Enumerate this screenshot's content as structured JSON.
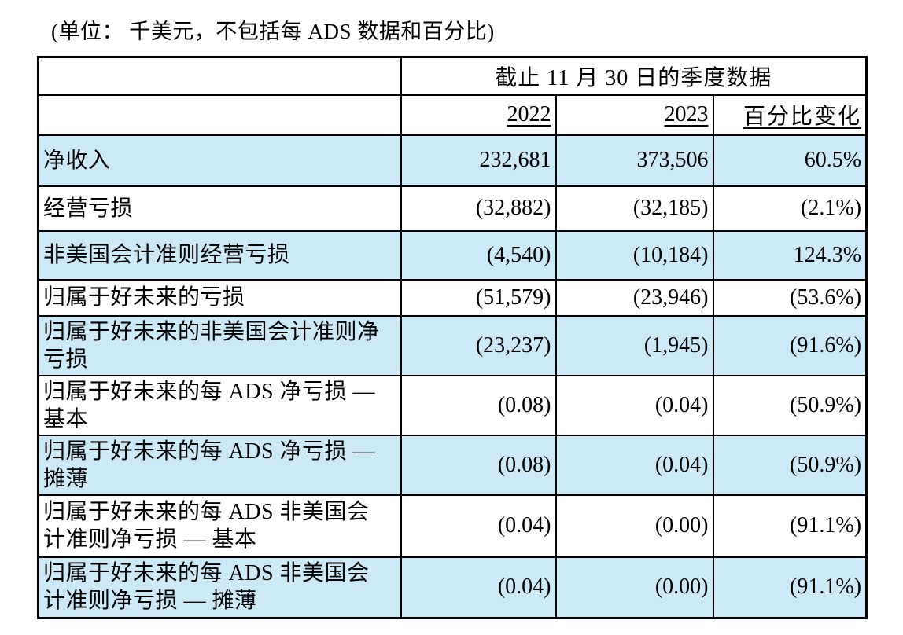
{
  "page": {
    "units_note": "(单位： 千美元，不包括每 ADS 数据和百分比)"
  },
  "table": {
    "period_title": "截止 11 月 30 日的季度数据",
    "columns": [
      "2022",
      "2023",
      "百分比变化"
    ],
    "rows": [
      {
        "label": "净收入",
        "y2022": "232,681",
        "y2023": "373,506",
        "change": "60.5%"
      },
      {
        "label": "经营亏损",
        "y2022": "(32,882)",
        "y2023": "(32,185)",
        "change": "(2.1%)"
      },
      {
        "label": "非美国会计准则经营亏损",
        "y2022": "(4,540)",
        "y2023": "(10,184)",
        "change": "124.3%"
      },
      {
        "label": "归属于好未来的亏损",
        "y2022": "(51,579)",
        "y2023": "(23,946)",
        "change": "(53.6%)"
      },
      {
        "label": "归属于好未来的非美国会计准则净亏损",
        "y2022": "(23,237)",
        "y2023": "(1,945)",
        "change": "(91.6%)"
      },
      {
        "label": "归属于好未来的每 ADS 净亏损 — 基本",
        "y2022": "(0.08)",
        "y2023": "(0.04)",
        "change": "(50.9%)"
      },
      {
        "label": "归属于好未来的每 ADS 净亏损 — 摊薄",
        "y2022": "(0.08)",
        "y2023": "(0.04)",
        "change": "(50.9%)"
      },
      {
        "label": "归属于好未来的每 ADS 非美国会计准则净亏损 — 基本",
        "y2022": "(0.04)",
        "y2023": "(0.00)",
        "change": "(91.1%)"
      },
      {
        "label": "归属于好未来的每 ADS 非美国会计准则净亏损 — 摊薄",
        "y2022": "(0.04)",
        "y2023": "(0.00)",
        "change": "(91.1%)"
      }
    ]
  },
  "colors": {
    "row_highlight": "#CCE9F8",
    "border": "#000000",
    "text": "#000000",
    "background": "#FFFFFF"
  }
}
